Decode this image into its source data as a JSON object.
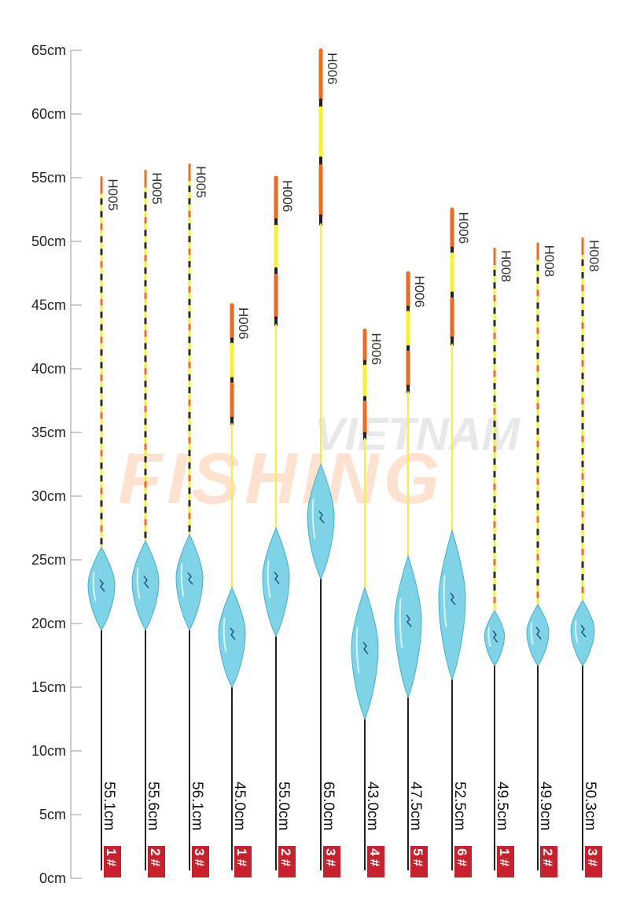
{
  "axis": {
    "labels": [
      "0cm",
      "5cm",
      "10cm",
      "15cm",
      "20cm",
      "25cm",
      "30cm",
      "35cm",
      "40cm",
      "45cm",
      "50cm",
      "55cm",
      "60cm",
      "65cm"
    ]
  },
  "watermark": {
    "line1": "VIETNAM",
    "line2": "FISHING"
  },
  "colors": {
    "body": "#7fd3e6",
    "body_dark": "#3fb0cc",
    "tip_orange": "#f06a1e",
    "tip_yellow": "#f7f22a",
    "badge": "#c8202c",
    "stem": "#222222"
  },
  "floats": [
    {
      "model": "H005",
      "length": "55.1cm",
      "size": "1",
      "size_mark": "#",
      "total_cm": 55.1,
      "body_bottom_cm": 19.5,
      "body_top_cm": 26.0,
      "tip_style": "striped"
    },
    {
      "model": "H005",
      "length": "55.6cm",
      "size": "2",
      "size_mark": "#",
      "total_cm": 55.6,
      "body_bottom_cm": 19.5,
      "body_top_cm": 26.5,
      "tip_style": "striped"
    },
    {
      "model": "H005",
      "length": "56.1cm",
      "size": "3",
      "size_mark": "#",
      "total_cm": 56.1,
      "body_bottom_cm": 19.5,
      "body_top_cm": 27.0,
      "tip_style": "striped"
    },
    {
      "model": "H006",
      "length": "45.0cm",
      "size": "1",
      "size_mark": "#",
      "total_cm": 45.0,
      "body_bottom_cm": 15.0,
      "body_top_cm": 22.8,
      "tip_style": "blocks"
    },
    {
      "model": "H006",
      "length": "55.0cm",
      "size": "2",
      "size_mark": "#",
      "total_cm": 55.0,
      "body_bottom_cm": 19.0,
      "body_top_cm": 27.5,
      "tip_style": "blocks"
    },
    {
      "model": "H006",
      "length": "65.0cm",
      "size": "3",
      "size_mark": "#",
      "total_cm": 65.0,
      "body_bottom_cm": 23.5,
      "body_top_cm": 32.5,
      "tip_style": "blocks"
    },
    {
      "model": "H006",
      "length": "43.0cm",
      "size": "4",
      "size_mark": "#",
      "total_cm": 43.0,
      "body_bottom_cm": 12.5,
      "body_top_cm": 22.8,
      "tip_style": "blocks"
    },
    {
      "model": "H006",
      "length": "47.5cm",
      "size": "5",
      "size_mark": "#",
      "total_cm": 47.5,
      "body_bottom_cm": 14.2,
      "body_top_cm": 25.3,
      "tip_style": "blocks"
    },
    {
      "model": "H006",
      "length": "52.5cm",
      "size": "6",
      "size_mark": "#",
      "total_cm": 52.5,
      "body_bottom_cm": 15.6,
      "body_top_cm": 27.3,
      "tip_style": "blocks"
    },
    {
      "model": "H008",
      "length": "49.5cm",
      "size": "1",
      "size_mark": "#",
      "total_cm": 49.5,
      "body_bottom_cm": 16.7,
      "body_top_cm": 21.0,
      "tip_style": "striped"
    },
    {
      "model": "H008",
      "length": "49.9cm",
      "size": "2",
      "size_mark": "#",
      "total_cm": 49.9,
      "body_bottom_cm": 16.7,
      "body_top_cm": 21.5,
      "tip_style": "striped"
    },
    {
      "model": "H008",
      "length": "50.3cm",
      "size": "3",
      "size_mark": "#",
      "total_cm": 50.3,
      "body_bottom_cm": 16.7,
      "body_top_cm": 21.8,
      "tip_style": "striped"
    }
  ]
}
